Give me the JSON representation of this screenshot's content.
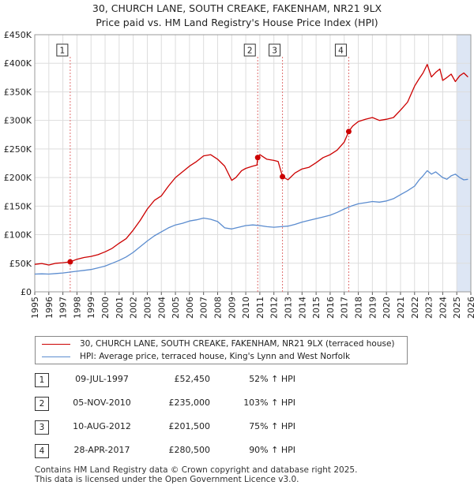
{
  "title_line1": "30, CHURCH LANE, SOUTH CREAKE, FAKENHAM, NR21 9LX",
  "title_line2": "Price paid vs. HM Land Registry's House Price Index (HPI)",
  "colors": {
    "price_line": "#cc0000",
    "hpi_line": "#5b8ccf",
    "grid": "#dddddd",
    "marker_line": "#e07070",
    "shade": "#dde6f4"
  },
  "legend": {
    "price": "30, CHURCH LANE, SOUTH CREAKE, FAKENHAM, NR21 9LX (terraced house)",
    "hpi": "HPI: Average price, terraced house, King's Lynn and West Norfolk"
  },
  "sales": [
    {
      "num": "1",
      "date": "09-JUL-1997",
      "price": "£52,450",
      "hpi": "52% ↑ HPI"
    },
    {
      "num": "2",
      "date": "05-NOV-2010",
      "price": "£235,000",
      "hpi": "103% ↑ HPI"
    },
    {
      "num": "3",
      "date": "10-AUG-2012",
      "price": "£201,500",
      "hpi": "75% ↑ HPI"
    },
    {
      "num": "4",
      "date": "28-APR-2017",
      "price": "£280,500",
      "hpi": "90% ↑ HPI"
    }
  ],
  "footer": {
    "line1": "Contains HM Land Registry data © Crown copyright and database right 2025.",
    "line2": "This data is licensed under the Open Government Licence v3.0."
  },
  "chart_data": {
    "type": "line",
    "title": "30, CHURCH LANE, SOUTH CREAKE, FAKENHAM, NR21 9LX — Price paid vs. HM Land Registry's House Price Index (HPI)",
    "xlabel": "",
    "ylabel": "",
    "xlim": [
      1995,
      2026
    ],
    "ylim": [
      0,
      450000
    ],
    "x_ticks": [
      1995,
      1996,
      1997,
      1998,
      1999,
      2000,
      2001,
      2002,
      2003,
      2004,
      2005,
      2006,
      2007,
      2008,
      2009,
      2010,
      2011,
      2012,
      2013,
      2014,
      2015,
      2016,
      2017,
      2018,
      2019,
      2020,
      2021,
      2022,
      2023,
      2024,
      2025,
      2026
    ],
    "y_ticks": [
      0,
      50000,
      100000,
      150000,
      200000,
      250000,
      300000,
      350000,
      400000,
      450000
    ],
    "y_tick_labels": [
      "£0",
      "£50K",
      "£100K",
      "£150K",
      "£200K",
      "£250K",
      "£300K",
      "£350K",
      "£400K",
      "£450K"
    ],
    "grid": true,
    "sale_markers": [
      {
        "label": "1",
        "x": 1997.52,
        "y": 52450
      },
      {
        "label": "2",
        "x": 2010.85,
        "y": 235000
      },
      {
        "label": "3",
        "x": 2012.61,
        "y": 201500
      },
      {
        "label": "4",
        "x": 2017.32,
        "y": 280500
      }
    ],
    "series": [
      {
        "name": "30, CHURCH LANE, SOUTH CREAKE, FAKENHAM, NR21 9LX (terraced house)",
        "x": [
          1995.0,
          1995.5,
          1996.0,
          1996.5,
          1997.0,
          1997.52,
          1998.0,
          1998.5,
          1999.0,
          1999.5,
          2000.0,
          2000.5,
          2001.0,
          2001.5,
          2002.0,
          2002.5,
          2003.0,
          2003.5,
          2004.0,
          2004.5,
          2005.0,
          2005.5,
          2006.0,
          2006.5,
          2007.0,
          2007.5,
          2008.0,
          2008.5,
          2009.0,
          2009.3,
          2009.7,
          2010.0,
          2010.5,
          2010.8,
          2010.85,
          2011.0,
          2011.5,
          2012.0,
          2012.3,
          2012.61,
          2013.0,
          2013.5,
          2014.0,
          2014.5,
          2015.0,
          2015.5,
          2016.0,
          2016.5,
          2017.0,
          2017.32,
          2017.6,
          2018.0,
          2018.5,
          2019.0,
          2019.5,
          2020.0,
          2020.5,
          2021.0,
          2021.5,
          2022.0,
          2022.3,
          2022.6,
          2022.9,
          2023.2,
          2023.5,
          2023.8,
          2024.0,
          2024.3,
          2024.6,
          2024.9,
          2025.2,
          2025.5,
          2025.8
        ],
        "values": [
          48000,
          49500,
          47000,
          50000,
          51000,
          52450,
          57000,
          60000,
          62000,
          65000,
          70000,
          76000,
          85000,
          93000,
          108000,
          125000,
          145000,
          160000,
          168000,
          185000,
          200000,
          210000,
          220000,
          228000,
          238000,
          240000,
          232000,
          220000,
          195000,
          200000,
          212000,
          216000,
          220000,
          222000,
          235000,
          240000,
          232000,
          230000,
          228000,
          201500,
          196000,
          208000,
          215000,
          218000,
          226000,
          235000,
          240000,
          248000,
          262000,
          280500,
          290000,
          298000,
          302000,
          305000,
          300000,
          302000,
          305000,
          318000,
          332000,
          360000,
          372000,
          383000,
          398000,
          376000,
          384000,
          390000,
          370000,
          375000,
          381000,
          368000,
          378000,
          383000,
          376000
        ]
      },
      {
        "name": "HPI: Average price, terraced house, King's Lynn and West Norfolk",
        "x": [
          1995.0,
          1995.5,
          1996.0,
          1996.5,
          1997.0,
          1997.5,
          1998.0,
          1998.5,
          1999.0,
          1999.5,
          2000.0,
          2000.5,
          2001.0,
          2001.5,
          2002.0,
          2002.5,
          2003.0,
          2003.5,
          2004.0,
          2004.5,
          2005.0,
          2005.5,
          2006.0,
          2006.5,
          2007.0,
          2007.5,
          2008.0,
          2008.5,
          2009.0,
          2009.5,
          2010.0,
          2010.5,
          2011.0,
          2011.5,
          2012.0,
          2012.5,
          2013.0,
          2013.5,
          2014.0,
          2014.5,
          2015.0,
          2015.5,
          2016.0,
          2016.5,
          2017.0,
          2017.5,
          2018.0,
          2018.5,
          2019.0,
          2019.5,
          2020.0,
          2020.5,
          2021.0,
          2021.5,
          2022.0,
          2022.3,
          2022.6,
          2022.9,
          2023.2,
          2023.5,
          2023.8,
          2024.0,
          2024.3,
          2024.6,
          2024.9,
          2025.2,
          2025.5,
          2025.8
        ],
        "values": [
          31000,
          31500,
          31000,
          32000,
          33000,
          34500,
          36000,
          37500,
          39000,
          42000,
          45000,
          50000,
          55000,
          61000,
          69000,
          79000,
          89000,
          98000,
          105000,
          112000,
          117000,
          120000,
          124000,
          126000,
          129000,
          127000,
          123000,
          112000,
          110000,
          113000,
          116000,
          117000,
          116000,
          114000,
          113000,
          114000,
          115000,
          118000,
          122000,
          125000,
          128000,
          131000,
          134000,
          139000,
          145000,
          150000,
          154000,
          156000,
          158000,
          157000,
          159000,
          163000,
          170000,
          177000,
          185000,
          195000,
          203000,
          212000,
          206000,
          210000,
          204000,
          200000,
          197000,
          203000,
          206000,
          200000,
          196000,
          197000
        ]
      }
    ]
  }
}
